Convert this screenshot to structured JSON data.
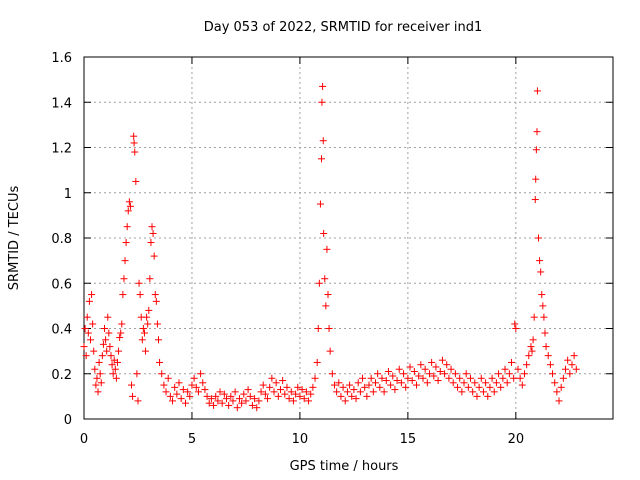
{
  "chart_data": {
    "type": "scatter",
    "title": "Day 053 of 2022, SRMTID for receiver ind1",
    "xlabel": "GPS time / hours",
    "ylabel": "SRMTID / TECUs",
    "xlim": [
      0,
      24.5
    ],
    "ylim": [
      0,
      1.6
    ],
    "xticks": [
      0,
      5,
      10,
      15,
      20
    ],
    "yticks": [
      0,
      0.2,
      0.4,
      0.6,
      0.8,
      1.0,
      1.2,
      1.4,
      1.6
    ],
    "xtick_labels": [
      "0",
      "5",
      "10",
      "15",
      "20"
    ],
    "ytick_labels": [
      "0",
      "0.2",
      "0.4",
      "0.6",
      "0.8",
      "1",
      "1.2",
      "1.4",
      "1.6"
    ],
    "grid": true,
    "marker": "plus",
    "color": "#ff0000",
    "series": [
      {
        "name": "SRMTID",
        "points": [
          [
            0.0,
            0.32
          ],
          [
            0.05,
            0.4
          ],
          [
            0.1,
            0.28
          ],
          [
            0.15,
            0.45
          ],
          [
            0.2,
            0.38
          ],
          [
            0.25,
            0.52
          ],
          [
            0.3,
            0.35
          ],
          [
            0.35,
            0.55
          ],
          [
            0.4,
            0.42
          ],
          [
            0.45,
            0.3
          ],
          [
            0.5,
            0.22
          ],
          [
            0.55,
            0.15
          ],
          [
            0.6,
            0.18
          ],
          [
            0.65,
            0.12
          ],
          [
            0.7,
            0.25
          ],
          [
            0.75,
            0.2
          ],
          [
            0.8,
            0.16
          ],
          [
            0.85,
            0.28
          ],
          [
            0.9,
            0.33
          ],
          [
            0.95,
            0.4
          ],
          [
            1.0,
            0.35
          ],
          [
            1.05,
            0.3
          ],
          [
            1.1,
            0.45
          ],
          [
            1.15,
            0.38
          ],
          [
            1.2,
            0.32
          ],
          [
            1.25,
            0.28
          ],
          [
            1.3,
            0.24
          ],
          [
            1.35,
            0.2
          ],
          [
            1.4,
            0.26
          ],
          [
            1.45,
            0.22
          ],
          [
            1.5,
            0.18
          ],
          [
            1.55,
            0.25
          ],
          [
            1.6,
            0.3
          ],
          [
            1.65,
            0.36
          ],
          [
            1.7,
            0.38
          ],
          [
            1.75,
            0.42
          ],
          [
            1.8,
            0.55
          ],
          [
            1.85,
            0.62
          ],
          [
            1.9,
            0.7
          ],
          [
            1.95,
            0.78
          ],
          [
            2.0,
            0.85
          ],
          [
            2.05,
            0.92
          ],
          [
            2.1,
            0.96
          ],
          [
            2.15,
            0.94
          ],
          [
            2.2,
            0.15
          ],
          [
            2.25,
            0.1
          ],
          [
            2.3,
            1.25
          ],
          [
            2.32,
            1.22
          ],
          [
            2.35,
            1.18
          ],
          [
            2.4,
            1.05
          ],
          [
            2.45,
            0.2
          ],
          [
            2.5,
            0.08
          ],
          [
            2.55,
            0.6
          ],
          [
            2.6,
            0.55
          ],
          [
            2.65,
            0.45
          ],
          [
            2.7,
            0.35
          ],
          [
            2.75,
            0.4
          ],
          [
            2.8,
            0.38
          ],
          [
            2.85,
            0.3
          ],
          [
            2.9,
            0.45
          ],
          [
            2.95,
            0.42
          ],
          [
            3.0,
            0.48
          ],
          [
            3.05,
            0.62
          ],
          [
            3.1,
            0.78
          ],
          [
            3.15,
            0.85
          ],
          [
            3.2,
            0.82
          ],
          [
            3.25,
            0.72
          ],
          [
            3.3,
            0.55
          ],
          [
            3.35,
            0.52
          ],
          [
            3.4,
            0.42
          ],
          [
            3.45,
            0.35
          ],
          [
            3.5,
            0.25
          ],
          [
            3.6,
            0.2
          ],
          [
            3.7,
            0.15
          ],
          [
            3.8,
            0.12
          ],
          [
            3.9,
            0.18
          ],
          [
            4.0,
            0.1
          ],
          [
            4.1,
            0.08
          ],
          [
            4.2,
            0.14
          ],
          [
            4.3,
            0.11
          ],
          [
            4.4,
            0.16
          ],
          [
            4.5,
            0.09
          ],
          [
            4.6,
            0.13
          ],
          [
            4.7,
            0.07
          ],
          [
            4.8,
            0.12
          ],
          [
            4.9,
            0.1
          ],
          [
            5.0,
            0.15
          ],
          [
            5.1,
            0.18
          ],
          [
            5.2,
            0.14
          ],
          [
            5.3,
            0.12
          ],
          [
            5.4,
            0.2
          ],
          [
            5.5,
            0.16
          ],
          [
            5.6,
            0.13
          ],
          [
            5.7,
            0.1
          ],
          [
            5.8,
            0.07
          ],
          [
            5.9,
            0.09
          ],
          [
            6.0,
            0.06
          ],
          [
            6.1,
            0.1
          ],
          [
            6.2,
            0.08
          ],
          [
            6.3,
            0.12
          ],
          [
            6.4,
            0.07
          ],
          [
            6.5,
            0.11
          ],
          [
            6.6,
            0.09
          ],
          [
            6.7,
            0.06
          ],
          [
            6.8,
            0.1
          ],
          [
            6.9,
            0.08
          ],
          [
            7.0,
            0.12
          ],
          [
            7.1,
            0.05
          ],
          [
            7.2,
            0.09
          ],
          [
            7.3,
            0.07
          ],
          [
            7.4,
            0.11
          ],
          [
            7.5,
            0.08
          ],
          [
            7.6,
            0.13
          ],
          [
            7.7,
            0.1
          ],
          [
            7.8,
            0.06
          ],
          [
            7.9,
            0.09
          ],
          [
            8.0,
            0.05
          ],
          [
            8.1,
            0.08
          ],
          [
            8.2,
            0.12
          ],
          [
            8.3,
            0.15
          ],
          [
            8.4,
            0.11
          ],
          [
            8.5,
            0.09
          ],
          [
            8.6,
            0.14
          ],
          [
            8.7,
            0.18
          ],
          [
            8.8,
            0.12
          ],
          [
            8.9,
            0.16
          ],
          [
            9.0,
            0.1
          ],
          [
            9.1,
            0.13
          ],
          [
            9.2,
            0.17
          ],
          [
            9.3,
            0.11
          ],
          [
            9.4,
            0.14
          ],
          [
            9.5,
            0.09
          ],
          [
            9.6,
            0.12
          ],
          [
            9.7,
            0.08
          ],
          [
            9.8,
            0.11
          ],
          [
            9.9,
            0.14
          ],
          [
            10.0,
            0.1
          ],
          [
            10.1,
            0.13
          ],
          [
            10.2,
            0.09
          ],
          [
            10.3,
            0.12
          ],
          [
            10.4,
            0.08
          ],
          [
            10.5,
            0.11
          ],
          [
            10.6,
            0.14
          ],
          [
            10.7,
            0.18
          ],
          [
            10.8,
            0.25
          ],
          [
            10.85,
            0.4
          ],
          [
            10.9,
            0.6
          ],
          [
            10.95,
            0.95
          ],
          [
            11.0,
            1.15
          ],
          [
            11.02,
            1.4
          ],
          [
            11.05,
            1.47
          ],
          [
            11.08,
            1.23
          ],
          [
            11.1,
            0.82
          ],
          [
            11.15,
            0.62
          ],
          [
            11.2,
            0.5
          ],
          [
            11.25,
            0.75
          ],
          [
            11.3,
            0.55
          ],
          [
            11.35,
            0.4
          ],
          [
            11.4,
            0.3
          ],
          [
            11.5,
            0.2
          ],
          [
            11.6,
            0.15
          ],
          [
            11.7,
            0.12
          ],
          [
            11.8,
            0.16
          ],
          [
            11.9,
            0.1
          ],
          [
            12.0,
            0.14
          ],
          [
            12.1,
            0.08
          ],
          [
            12.2,
            0.12
          ],
          [
            12.3,
            0.15
          ],
          [
            12.4,
            0.1
          ],
          [
            12.5,
            0.13
          ],
          [
            12.6,
            0.09
          ],
          [
            12.7,
            0.16
          ],
          [
            12.8,
            0.12
          ],
          [
            12.9,
            0.18
          ],
          [
            13.0,
            0.14
          ],
          [
            13.1,
            0.1
          ],
          [
            13.2,
            0.15
          ],
          [
            13.3,
            0.18
          ],
          [
            13.4,
            0.12
          ],
          [
            13.5,
            0.16
          ],
          [
            13.6,
            0.2
          ],
          [
            13.7,
            0.14
          ],
          [
            13.8,
            0.18
          ],
          [
            13.9,
            0.12
          ],
          [
            14.0,
            0.17
          ],
          [
            14.1,
            0.21
          ],
          [
            14.2,
            0.15
          ],
          [
            14.3,
            0.19
          ],
          [
            14.4,
            0.13
          ],
          [
            14.5,
            0.17
          ],
          [
            14.6,
            0.22
          ],
          [
            14.7,
            0.16
          ],
          [
            14.8,
            0.2
          ],
          [
            14.9,
            0.14
          ],
          [
            15.0,
            0.18
          ],
          [
            15.1,
            0.23
          ],
          [
            15.2,
            0.17
          ],
          [
            15.3,
            0.21
          ],
          [
            15.4,
            0.15
          ],
          [
            15.5,
            0.19
          ],
          [
            15.6,
            0.24
          ],
          [
            15.7,
            0.18
          ],
          [
            15.8,
            0.22
          ],
          [
            15.9,
            0.16
          ],
          [
            16.0,
            0.2
          ],
          [
            16.1,
            0.25
          ],
          [
            16.2,
            0.19
          ],
          [
            16.3,
            0.23
          ],
          [
            16.4,
            0.17
          ],
          [
            16.5,
            0.21
          ],
          [
            16.6,
            0.26
          ],
          [
            16.7,
            0.2
          ],
          [
            16.8,
            0.24
          ],
          [
            16.9,
            0.18
          ],
          [
            17.0,
            0.22
          ],
          [
            17.1,
            0.16
          ],
          [
            17.2,
            0.2
          ],
          [
            17.3,
            0.14
          ],
          [
            17.4,
            0.18
          ],
          [
            17.5,
            0.12
          ],
          [
            17.6,
            0.16
          ],
          [
            17.7,
            0.2
          ],
          [
            17.8,
            0.14
          ],
          [
            17.9,
            0.18
          ],
          [
            18.0,
            0.12
          ],
          [
            18.1,
            0.16
          ],
          [
            18.2,
            0.1
          ],
          [
            18.3,
            0.14
          ],
          [
            18.4,
            0.18
          ],
          [
            18.5,
            0.12
          ],
          [
            18.6,
            0.16
          ],
          [
            18.7,
            0.1
          ],
          [
            18.8,
            0.14
          ],
          [
            18.9,
            0.18
          ],
          [
            19.0,
            0.12
          ],
          [
            19.1,
            0.16
          ],
          [
            19.2,
            0.2
          ],
          [
            19.3,
            0.14
          ],
          [
            19.4,
            0.18
          ],
          [
            19.5,
            0.22
          ],
          [
            19.6,
            0.16
          ],
          [
            19.7,
            0.2
          ],
          [
            19.8,
            0.25
          ],
          [
            19.9,
            0.18
          ],
          [
            19.95,
            0.42
          ],
          [
            20.0,
            0.4
          ],
          [
            20.1,
            0.22
          ],
          [
            20.2,
            0.18
          ],
          [
            20.3,
            0.15
          ],
          [
            20.4,
            0.2
          ],
          [
            20.5,
            0.24
          ],
          [
            20.6,
            0.28
          ],
          [
            20.7,
            0.32
          ],
          [
            20.75,
            0.3
          ],
          [
            20.8,
            0.35
          ],
          [
            20.85,
            0.45
          ],
          [
            20.9,
            0.97
          ],
          [
            20.92,
            1.06
          ],
          [
            20.95,
            1.19
          ],
          [
            20.98,
            1.27
          ],
          [
            21.0,
            1.45
          ],
          [
            21.05,
            0.8
          ],
          [
            21.1,
            0.7
          ],
          [
            21.15,
            0.65
          ],
          [
            21.2,
            0.55
          ],
          [
            21.25,
            0.5
          ],
          [
            21.3,
            0.45
          ],
          [
            21.35,
            0.38
          ],
          [
            21.4,
            0.32
          ],
          [
            21.5,
            0.28
          ],
          [
            21.6,
            0.24
          ],
          [
            21.7,
            0.2
          ],
          [
            21.8,
            0.16
          ],
          [
            21.9,
            0.12
          ],
          [
            22.0,
            0.08
          ],
          [
            22.1,
            0.14
          ],
          [
            22.2,
            0.18
          ],
          [
            22.3,
            0.22
          ],
          [
            22.4,
            0.26
          ],
          [
            22.5,
            0.2
          ],
          [
            22.6,
            0.24
          ],
          [
            22.7,
            0.28
          ],
          [
            22.8,
            0.22
          ]
        ]
      }
    ]
  }
}
